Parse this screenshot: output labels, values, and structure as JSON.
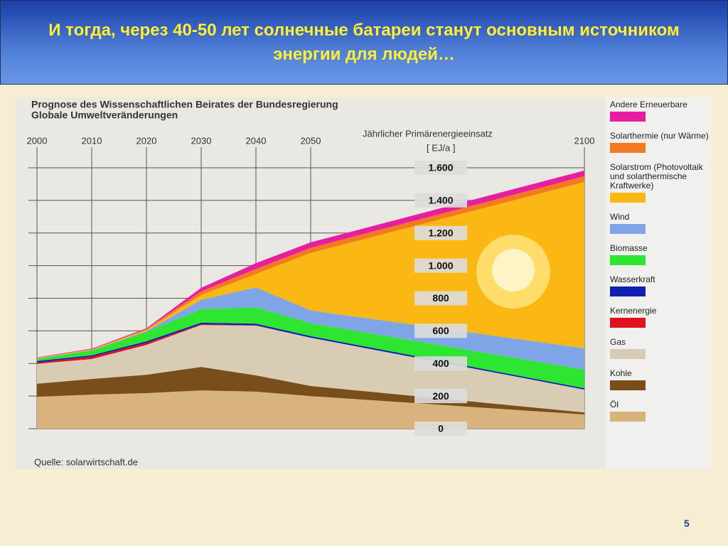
{
  "slide": {
    "title": "И тогда, через 40-50 лет солнечные батареи станут основным источником энергии для людей…",
    "page_number": "5"
  },
  "chart_data": {
    "type": "stacked-area",
    "title": "Prognose des Wissenschaftlichen Beirates der Bundesregierung",
    "subtitle": "Globale Umweltveränderungen",
    "y_label": "Jährlicher Primärenergieeinsatz",
    "y_unit": "[ EJ/a ]",
    "source": "Quelle: solarwirtschaft.de",
    "x": [
      2000,
      2010,
      2020,
      2030,
      2040,
      2050,
      2100
    ],
    "xlim": [
      2000,
      2100
    ],
    "xticks": [
      2000,
      2010,
      2020,
      2030,
      2040,
      2050,
      2100
    ],
    "ylim": [
      0,
      1600
    ],
    "yticks": [
      0,
      200,
      400,
      600,
      800,
      {
        "value": 1000,
        "label": "1.000"
      },
      {
        "value": 1200,
        "label": "1.200"
      },
      {
        "value": 1400,
        "label": "1.400"
      },
      {
        "value": 1600,
        "label": "1.600"
      }
    ],
    "grid": true,
    "series": [
      {
        "name": "Öl",
        "color": "#d9b37e",
        "values": [
          196,
          209,
          218,
          235,
          227,
          200,
          87
        ]
      },
      {
        "name": "Kohle",
        "color": "#7a4e1a",
        "values": [
          80,
          96,
          113,
          144,
          100,
          62,
          13
        ]
      },
      {
        "name": "Gas",
        "color": "#d8cdb4",
        "values": [
          122,
          122,
          183,
          257,
          305,
          296,
          140
        ]
      },
      {
        "name": "Kernenergie",
        "color": "#e01020",
        "values": [
          8,
          15,
          12,
          4,
          2,
          0,
          0
        ]
      },
      {
        "name": "Wasserkraft",
        "color": "#1020b0",
        "values": [
          9,
          8,
          10,
          10,
          10,
          10,
          8
        ]
      },
      {
        "name": "Biomasse",
        "color": "#2ee632",
        "values": [
          13,
          30,
          57,
          83,
          100,
          79,
          114
        ]
      },
      {
        "name": "Wind",
        "color": "#7fa5e6",
        "values": [
          2,
          2,
          5,
          57,
          122,
          78,
          131
        ]
      },
      {
        "name": "Solarstrom (Photovoltaik und solarthermische Kraftwerke)",
        "color": "#fbb714",
        "values": [
          3,
          3,
          8,
          30,
          83,
          353,
          1020
        ]
      },
      {
        "name": "Solarthermie (nur Wärme)",
        "color": "#f47a20",
        "values": [
          2,
          3,
          5,
          22,
          31,
          31,
          35
        ]
      },
      {
        "name": "Andere Erneuerbare",
        "color": "#e81ea0",
        "values": [
          2,
          3,
          5,
          22,
          35,
          34,
          35
        ]
      }
    ]
  }
}
